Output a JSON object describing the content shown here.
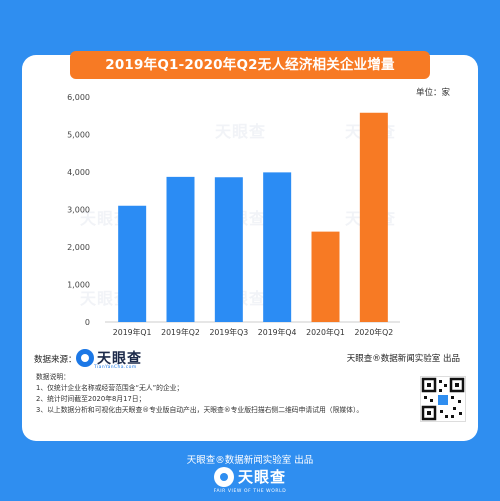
{
  "title": "2019年Q1-2020年Q2无人经济相关企业增量",
  "unit_label": "单位：家",
  "source": {
    "label": "数据来源：",
    "logo_text": "天眼查",
    "logo_sub": "TianYanCha.com",
    "right_text": "天眼查®数据新闻实验室 出品"
  },
  "notes": [
    "数据说明：",
    "1、仅统计企业名称或经营范围含“无人”的企业；",
    "2、统计时间截至2020年8月17日；",
    "3、以上数据分析和可视化由天眼查®专业版自动产出，天眼查®专业版扫描右侧二维码申请试用（限媒体）。"
  ],
  "footer": {
    "line": "天眼查®数据新闻实验室 出品",
    "logo_text": "天眼查",
    "logo_sub": "FAIR VIEW OF THE WORLD"
  },
  "watermark_text": "天眼查",
  "colors": {
    "background": "#2f8ef0",
    "bar_blue": "#2b8cf4",
    "bar_orange": "#f77a24",
    "banner": "#f77a24"
  },
  "chart_data": {
    "type": "bar",
    "categories": [
      "2019年Q1",
      "2019年Q2",
      "2019年Q3",
      "2019年Q4",
      "2020年Q1",
      "2020年Q2"
    ],
    "values": [
      3100,
      3870,
      3860,
      3990,
      2410,
      5580
    ],
    "bar_colors": [
      "#2b8cf4",
      "#2b8cf4",
      "#2b8cf4",
      "#2b8cf4",
      "#f77a24",
      "#f77a24"
    ],
    "yticks": [
      "0",
      "1,000",
      "2,000",
      "3,000",
      "4,000",
      "5,000",
      "6,000"
    ],
    "ylim": [
      0,
      6000
    ],
    "grid": false,
    "title": "2019年Q1-2020年Q2无人经济相关企业增量",
    "xlabel": "",
    "ylabel": "单位：家"
  }
}
